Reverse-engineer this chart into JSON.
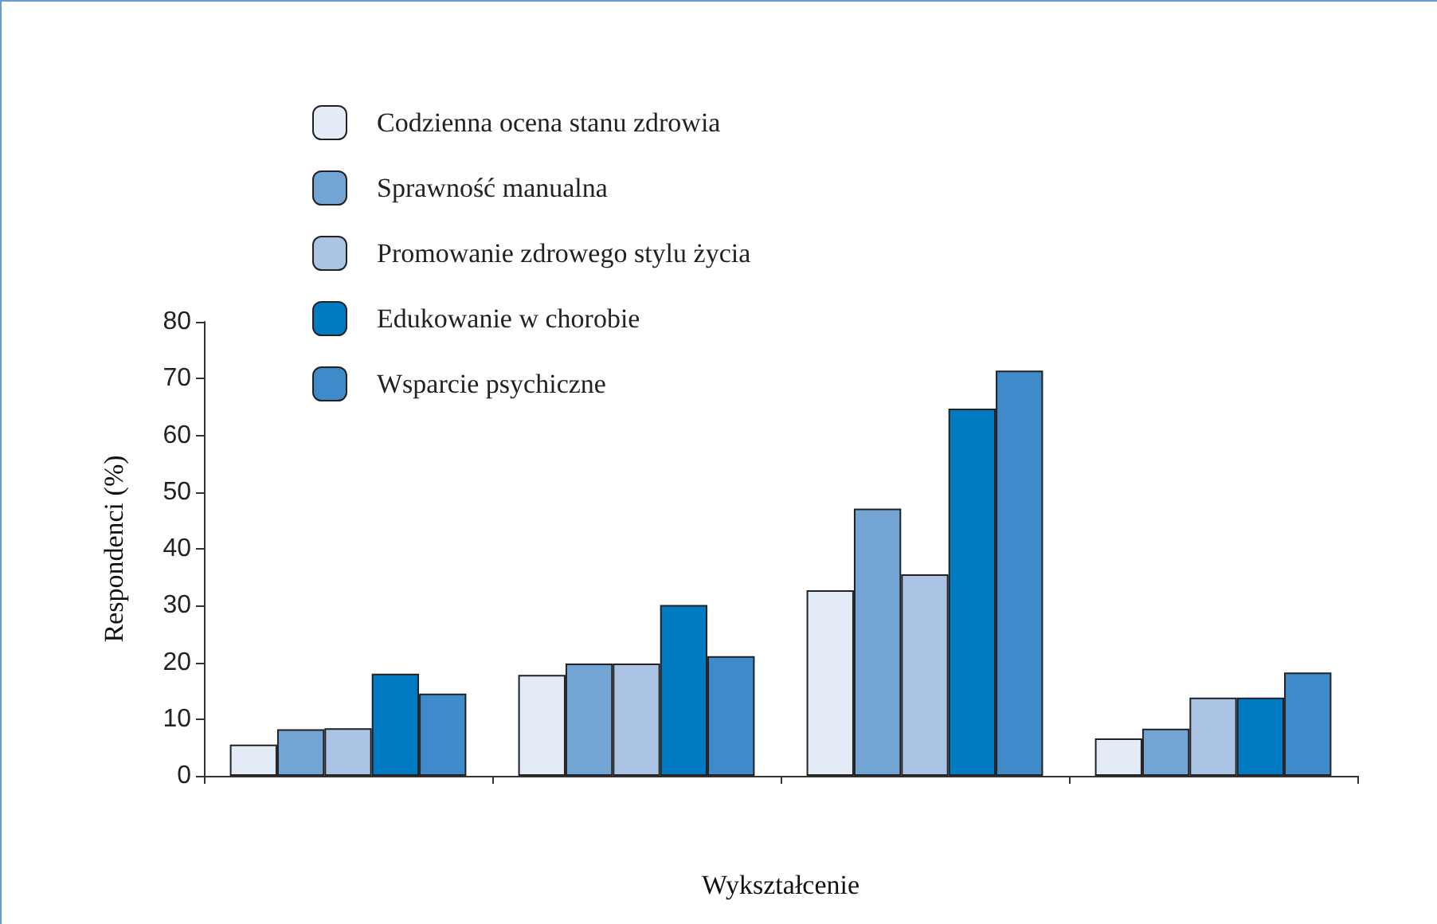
{
  "chart_data": {
    "type": "bar",
    "xlabel": "Wykształcenie",
    "ylabel": "Respondenci (%)",
    "categories": [
      null,
      null,
      null,
      null
    ],
    "series": [
      {
        "name": "Codzienna ocena stanu zdrowia",
        "color": "#e3ebf6",
        "values": [
          5.5,
          17.8,
          32.7,
          6.6
        ]
      },
      {
        "name": "Sprawność manualna",
        "color": "#72a4d4",
        "values": [
          8.2,
          19.8,
          47.1,
          8.3
        ]
      },
      {
        "name": "Promowanie zdrowego stylu życia",
        "color": "#abc4e5",
        "values": [
          8.4,
          19.8,
          35.5,
          13.8
        ]
      },
      {
        "name": "Edukowanie w chorobie",
        "color": "#007bc2",
        "values": [
          18,
          30.1,
          64.7,
          13.8
        ]
      },
      {
        "name": "Wsparcie psychiczne",
        "color": "#3f8bca",
        "values": [
          14.5,
          21.1,
          71.4,
          18.2
        ]
      }
    ],
    "ylim": [
      0,
      80
    ],
    "yticks": [
      0,
      10,
      20,
      30,
      40,
      50,
      60,
      70,
      80
    ],
    "grid": false,
    "legend": "top left"
  }
}
